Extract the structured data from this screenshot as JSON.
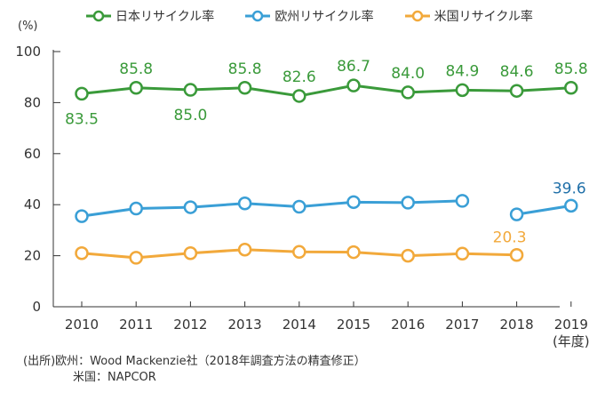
{
  "unit_label": "(%)",
  "year_unit_label": "(年度)",
  "notes": {
    "line1": "(出所)欧州：Wood Mackenzie社（2018年調査方法の精査修正）",
    "line2": "米国：NAPCOR"
  },
  "chart_data": {
    "type": "line",
    "title": "",
    "xlabel": "(年度)",
    "ylabel": "(%)",
    "ylim": [
      0,
      100
    ],
    "yticks": [
      0,
      20,
      40,
      60,
      80,
      100
    ],
    "x": [
      "2010",
      "2011",
      "2012",
      "2013",
      "2014",
      "2015",
      "2016",
      "2017",
      "2018",
      "2019"
    ],
    "grid": false,
    "legend_position": "top",
    "series": [
      {
        "name": "日本リサイクル率",
        "color": "#3a9a3a",
        "values": [
          83.5,
          85.8,
          85.0,
          85.8,
          82.6,
          86.7,
          84.0,
          84.9,
          84.6,
          85.8
        ],
        "labels": [
          "83.5",
          "85.8",
          "85.0",
          "85.8",
          "82.6",
          "86.7",
          "84.0",
          "84.9",
          "84.6",
          "85.8"
        ]
      },
      {
        "name": "欧州リサイクル率",
        "color": "#3a9fd6",
        "label_color": "#1f6fa8",
        "values": [
          35.5,
          38.5,
          39.0,
          40.5,
          39.2,
          41.0,
          40.8,
          41.5,
          36.2,
          39.6
        ],
        "segments": [
          [
            0,
            7
          ],
          [
            8,
            9
          ]
        ],
        "labels": [
          "",
          "",
          "",
          "",
          "",
          "",
          "",
          "",
          "",
          "39.6"
        ]
      },
      {
        "name": "米国リサイクル率",
        "color": "#f2a93b",
        "label_color": "#f2a93b",
        "values": [
          21.0,
          19.2,
          21.0,
          22.4,
          21.5,
          21.4,
          20.0,
          20.8,
          20.3,
          null
        ],
        "labels": [
          "",
          "",
          "",
          "",
          "",
          "",
          "",
          "",
          "20.3",
          ""
        ]
      }
    ]
  }
}
